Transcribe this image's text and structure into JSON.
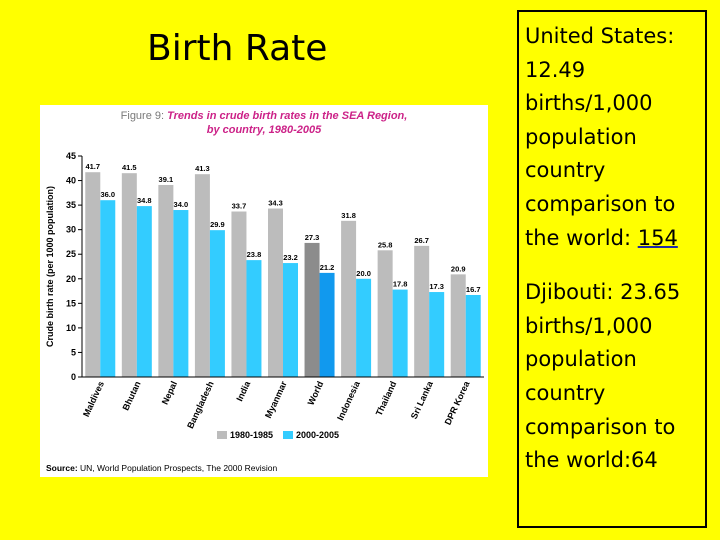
{
  "slide": {
    "title": "Birth Rate"
  },
  "facts": [
    {
      "text": "United States: 12.49 births/1,000 population country comparison to the world: ",
      "rank": "154",
      "rank_linked": true
    },
    {
      "text": "Djibouti: 23.65 births/1,000 population country comparison to the world:",
      "rank": "64",
      "rank_linked": false
    }
  ],
  "chart_data": {
    "type": "bar",
    "figure_label": "Figure 9:",
    "title_line1": "Trends in crude birth rates in the SEA Region,",
    "title_line2": "by country, 1980-2005",
    "ylabel": "Crude birth rate (per 1000 population)",
    "ylim": [
      0,
      45
    ],
    "yticks": [
      0,
      5,
      10,
      15,
      20,
      25,
      30,
      35,
      40,
      45
    ],
    "categories": [
      "Maldives",
      "Bhutan",
      "Nepal",
      "Bangladesh",
      "India",
      "Myanmar",
      "World",
      "Indonesia",
      "Thailand",
      "Sri Lanka",
      "DPR Korea"
    ],
    "series": [
      {
        "name": "1980-1985",
        "color": "#bcbcbc",
        "highlight_color": "#8c8c8c",
        "values": [
          41.7,
          41.5,
          39.1,
          41.3,
          33.7,
          34.3,
          27.3,
          31.8,
          25.8,
          26.7,
          20.9
        ]
      },
      {
        "name": "2000-2005",
        "color": "#33ccff",
        "highlight_color": "#1199ee",
        "values": [
          36.0,
          34.8,
          34.0,
          29.9,
          23.8,
          23.2,
          21.2,
          20.0,
          17.8,
          17.3,
          16.7
        ]
      }
    ],
    "highlight_category": "World",
    "legend": "bottom-center",
    "source_label": "Source:",
    "source_text": "UN, World Population Prospects, The 2000 Revision",
    "colors": {
      "figure_label": "#7a7a7a",
      "title": "#cc2288",
      "axis": "#000000"
    }
  }
}
